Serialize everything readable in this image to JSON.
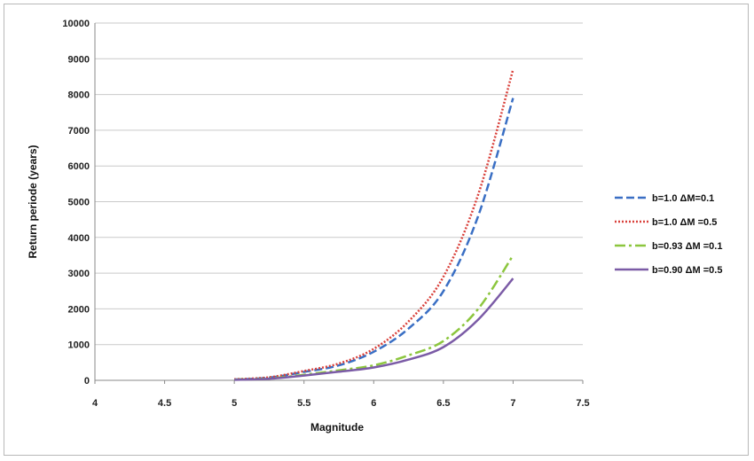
{
  "chart_data": {
    "type": "line",
    "title": "",
    "xlabel": "Magnitude",
    "ylabel": "Return periode (years)",
    "xlim": [
      4,
      7.5
    ],
    "ylim": [
      0,
      10000
    ],
    "x_ticks": [
      "4",
      "4.5",
      "5",
      "5.5",
      "6",
      "6.5",
      "7",
      "7.5"
    ],
    "y_ticks": [
      "0",
      "1000",
      "2000",
      "3000",
      "4000",
      "5000",
      "6000",
      "7000",
      "8000",
      "9000",
      "10000"
    ],
    "grid": "horizontal",
    "legend_position": "right",
    "x": [
      5.0,
      5.25,
      5.5,
      5.75,
      6.0,
      6.25,
      6.5,
      6.75,
      7.0
    ],
    "series": [
      {
        "name": "b=1.0 ΔM=0.1",
        "color": "#3a6fc4",
        "style": "dashed",
        "values": [
          25,
          75,
          235,
          420,
          800,
          1450,
          2500,
          4600,
          7900
        ]
      },
      {
        "name": "b=1.0 ΔM =0.5",
        "color": "#d9413b",
        "style": "dotted",
        "values": [
          30,
          85,
          260,
          470,
          880,
          1650,
          2900,
          5200,
          8700
        ]
      },
      {
        "name": "b=0.93 ΔM =0.1",
        "color": "#8cc63e",
        "style": "dashdot",
        "values": [
          20,
          55,
          155,
          280,
          420,
          700,
          1100,
          2000,
          3500
        ]
      },
      {
        "name": "b=0.90 ΔM =0.5",
        "color": "#7b5ba6",
        "style": "solid",
        "values": [
          15,
          45,
          135,
          240,
          360,
          580,
          930,
          1700,
          2850
        ]
      }
    ]
  }
}
